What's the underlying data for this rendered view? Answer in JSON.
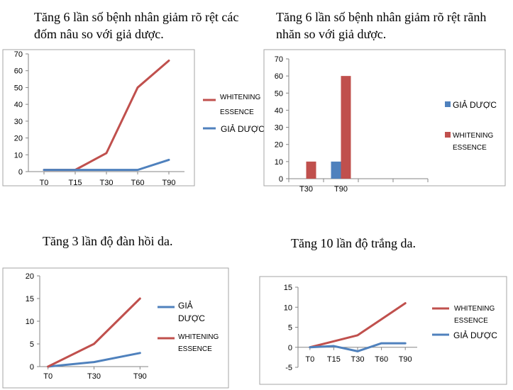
{
  "chart_data": [
    {
      "type": "line",
      "title": "Tăng 6 lần số bệnh nhân giảm rõ rệt các đốm nâu so với giả dược.",
      "categories": [
        "T0",
        "T15",
        "T30",
        "T60",
        "T90"
      ],
      "series": [
        {
          "name": "WHITENING ESSENCE",
          "values": [
            1,
            1,
            11,
            50,
            66
          ],
          "color": "#c0504d"
        },
        {
          "name": "GIẢ DƯỢC",
          "values": [
            1,
            1,
            1,
            1,
            7
          ],
          "color": "#4f81bd"
        }
      ],
      "ylim": [
        0,
        70
      ],
      "yticks": [
        0,
        10,
        20,
        30,
        40,
        50,
        60,
        70
      ],
      "legend_position": "right",
      "grid": false
    },
    {
      "type": "bar",
      "title": "Tăng 6 lần số bệnh nhân giảm rõ rệt rãnh nhăn so với giả dược.",
      "categories": [
        "T30",
        "T90",
        "",
        ""
      ],
      "series": [
        {
          "name": "GIẢ DƯỢC",
          "values": [
            0,
            10,
            null,
            null
          ],
          "color": "#4f81bd"
        },
        {
          "name": "WHITENING ESSENCE",
          "values": [
            10,
            60,
            null,
            null
          ],
          "color": "#c0504d"
        }
      ],
      "ylim": [
        0,
        70
      ],
      "yticks": [
        0,
        10,
        20,
        30,
        40,
        50,
        60,
        70
      ],
      "legend_position": "right",
      "grid": false
    },
    {
      "type": "line",
      "title": "Tăng 3 lần độ đàn hồi da.",
      "categories": [
        "T0",
        "T30",
        "T90"
      ],
      "series": [
        {
          "name": "GIẢ DƯỢC",
          "values": [
            0,
            1,
            3
          ],
          "color": "#4f81bd"
        },
        {
          "name": "WHITENING ESSENCE",
          "values": [
            0,
            5,
            15
          ],
          "color": "#c0504d"
        }
      ],
      "ylim": [
        0,
        20
      ],
      "yticks": [
        0,
        5,
        10,
        15,
        20
      ],
      "legend_position": "right",
      "grid": false
    },
    {
      "type": "line",
      "title": "Tăng 10 lần độ trắng da.",
      "categories": [
        "T0",
        "T15",
        "T30",
        "T60",
        "T90"
      ],
      "series": [
        {
          "name": "WHITENING ESSENCE",
          "values": [
            0,
            1.5,
            3,
            7,
            11
          ],
          "color": "#c0504d"
        },
        {
          "name": "GIẢ DƯỢC",
          "values": [
            0,
            0.3,
            -1,
            1,
            1
          ],
          "color": "#4f81bd"
        }
      ],
      "ylim": [
        -5,
        15
      ],
      "yticks": [
        -5,
        0,
        5,
        10,
        15
      ],
      "legend_position": "right",
      "grid": false
    }
  ]
}
